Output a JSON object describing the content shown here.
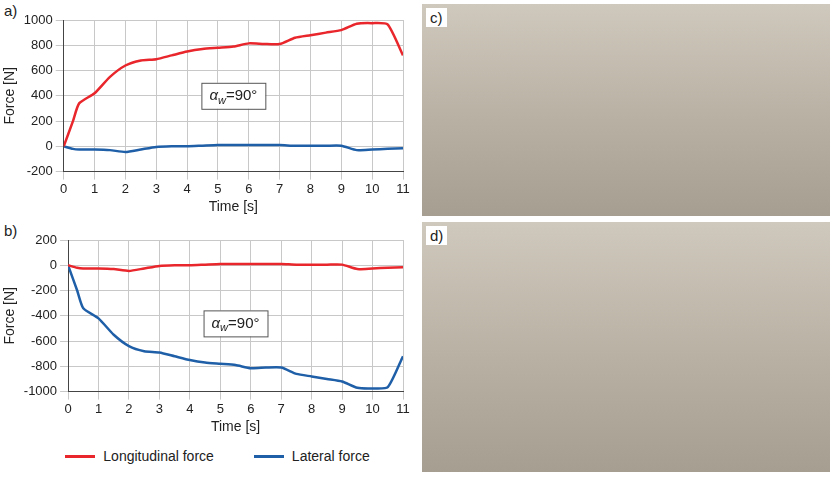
{
  "chart_data": [
    {
      "type": "line",
      "panel": "a)",
      "x_label": "Time [s]",
      "y_label": "Force [N]",
      "annotation": {
        "base": "α",
        "sub": "w",
        "rest": "=90°"
      },
      "xlim": [
        0,
        11
      ],
      "xticks": [
        0,
        1,
        2,
        3,
        4,
        5,
        6,
        7,
        8,
        9,
        10,
        11
      ],
      "ylim": [
        -200,
        1000
      ],
      "yticks": [
        -200,
        0,
        200,
        400,
        600,
        800,
        1000
      ],
      "grid": true,
      "legend": "bottom",
      "x": [
        0,
        0.3,
        0.5,
        1,
        1.5,
        2,
        2.5,
        3,
        3.5,
        4,
        4.5,
        5,
        5.5,
        6,
        6.5,
        7,
        7.5,
        8,
        8.5,
        9,
        9.5,
        10,
        10.5,
        11
      ],
      "series": [
        {
          "name": "Longitudinal force",
          "color": "#e8262b",
          "values": [
            0,
            200,
            340,
            420,
            550,
            640,
            680,
            690,
            720,
            750,
            770,
            780,
            790,
            815,
            810,
            810,
            860,
            880,
            900,
            920,
            970,
            975,
            965,
            720
          ]
        },
        {
          "name": "Lateral force",
          "color": "#1f5fa8",
          "values": [
            0,
            -20,
            -25,
            -25,
            -30,
            -45,
            -25,
            -5,
            0,
            0,
            5,
            10,
            10,
            10,
            10,
            10,
            5,
            5,
            5,
            5,
            -30,
            -25,
            -20,
            -15
          ]
        }
      ]
    },
    {
      "type": "line",
      "panel": "b)",
      "x_label": "Time [s]",
      "y_label": "Force [N]",
      "annotation": {
        "base": "α",
        "sub": "w",
        "rest": "=90°"
      },
      "xlim": [
        0,
        11
      ],
      "xticks": [
        0,
        1,
        2,
        3,
        4,
        5,
        6,
        7,
        8,
        9,
        10,
        11
      ],
      "ylim": [
        -1000,
        200
      ],
      "yticks": [
        -1000,
        -800,
        -600,
        -400,
        -200,
        0,
        200
      ],
      "grid": true,
      "legend": "bottom",
      "x": [
        0,
        0.3,
        0.5,
        1,
        1.5,
        2,
        2.5,
        3,
        3.5,
        4,
        4.5,
        5,
        5.5,
        6,
        6.5,
        7,
        7.5,
        8,
        8.5,
        9,
        9.5,
        10,
        10.5,
        11
      ],
      "series": [
        {
          "name": "Longitudinal force",
          "color": "#e8262b",
          "values": [
            0,
            -20,
            -25,
            -25,
            -30,
            -45,
            -25,
            -5,
            0,
            0,
            5,
            10,
            10,
            10,
            10,
            10,
            5,
            5,
            5,
            5,
            -30,
            -25,
            -20,
            -15
          ]
        },
        {
          "name": "Lateral force",
          "color": "#1f5fa8",
          "values": [
            0,
            -200,
            -340,
            -420,
            -550,
            -640,
            -680,
            -690,
            -720,
            -750,
            -770,
            -780,
            -790,
            -815,
            -810,
            -810,
            -860,
            -880,
            -900,
            -920,
            -970,
            -975,
            -965,
            -720
          ]
        }
      ]
    }
  ],
  "photos": [
    {
      "panel": "c)"
    },
    {
      "panel": "d)"
    }
  ]
}
